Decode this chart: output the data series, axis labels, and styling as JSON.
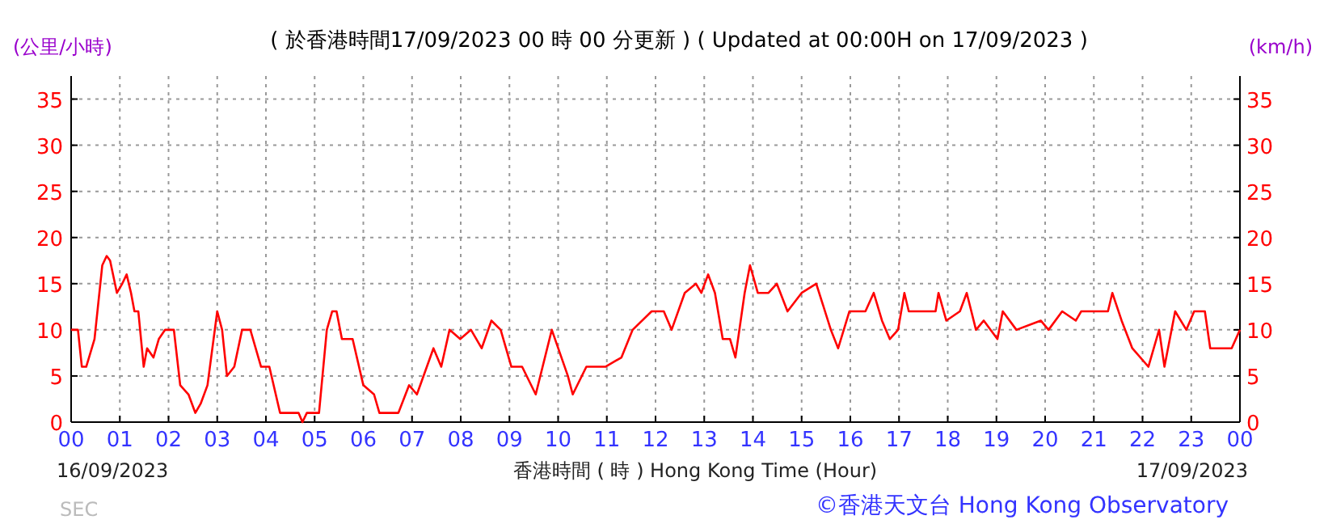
{
  "chart_data": {
    "type": "line",
    "title": "( 於香港時間17/09/2023 00 時 00 分更新 ) ( Updated at 00:00H on 17/09/2023 )",
    "xlabel": "香港時間 ( 時 ) Hong Kong Time (Hour)",
    "ylabel": "(公里/小時)",
    "y2label": "(km/h)",
    "annotations": [
      "16/09/2023",
      "17/09/2023",
      "©香港天文台 Hong Kong Observatory",
      "SEC"
    ],
    "x": [
      0,
      0.14,
      0.22,
      0.31,
      0.48,
      0.56,
      0.64,
      0.73,
      0.8,
      0.94,
      1.05,
      1.14,
      1.23,
      1.3,
      1.38,
      1.49,
      1.56,
      1.69,
      1.8,
      1.93,
      2.11,
      2.24,
      2.41,
      2.55,
      2.66,
      2.8,
      3.0,
      3.1,
      3.2,
      3.35,
      3.51,
      3.68,
      3.9,
      4.07,
      4.29,
      4.67,
      4.75,
      4.84,
      5.09,
      5.25,
      5.36,
      5.45,
      5.56,
      5.78,
      6.0,
      6.22,
      6.33,
      6.72,
      6.94,
      7.1,
      7.44,
      7.6,
      7.77,
      7.99,
      8.21,
      8.43,
      8.63,
      8.82,
      9.04,
      9.26,
      9.54,
      9.87,
      10.2,
      10.3,
      10.58,
      10.97,
      11.3,
      11.53,
      11.92,
      12.17,
      12.33,
      12.6,
      12.83,
      12.94,
      13.08,
      13.22,
      13.38,
      13.53,
      13.64,
      13.83,
      13.94,
      14.1,
      14.32,
      14.49,
      14.71,
      15.0,
      15.3,
      15.6,
      15.75,
      15.98,
      16.31,
      16.48,
      16.65,
      16.81,
      16.98,
      17.11,
      17.2,
      17.75,
      17.81,
      17.97,
      18.25,
      18.39,
      18.58,
      18.74,
      19.02,
      19.13,
      19.41,
      19.91,
      20.07,
      20.35,
      20.63,
      20.74,
      21.29,
      21.38,
      21.57,
      21.79,
      22.12,
      22.34,
      22.45,
      22.67,
      22.9,
      23.06,
      23.28,
      23.39,
      23.83,
      24
    ],
    "series": [
      {
        "color": "#ff0000",
        "values": [
          10,
          10,
          6,
          6,
          9,
          13,
          17,
          18,
          17.5,
          14,
          15,
          16,
          14,
          12,
          12,
          6,
          8,
          7,
          9,
          10,
          10,
          4,
          3,
          1,
          2,
          4,
          12,
          10,
          5,
          6,
          10,
          10,
          6,
          6,
          1,
          1,
          0,
          1,
          1,
          10,
          12,
          12,
          9,
          9,
          4,
          3,
          1,
          1,
          4,
          3,
          8,
          6,
          10,
          9,
          10,
          8,
          11,
          10,
          6,
          6,
          3,
          10,
          5,
          3,
          6,
          6,
          7,
          10,
          12,
          12,
          10,
          14,
          15,
          14,
          16,
          14,
          9,
          9,
          7,
          14,
          17,
          14,
          14,
          15,
          12,
          14,
          15,
          10,
          8,
          12,
          12,
          14,
          11,
          9,
          10,
          14,
          12,
          12,
          14,
          11,
          12,
          14,
          10,
          11,
          9,
          12,
          10,
          11,
          10,
          12,
          11,
          12,
          12,
          14,
          11,
          8,
          6,
          10,
          6,
          12,
          10,
          12,
          12,
          8,
          8,
          10
        ]
      }
    ],
    "xlim": [
      0,
      24
    ],
    "xticks": [
      {
        "value": 0,
        "label": "00"
      },
      {
        "value": 1,
        "label": "01"
      },
      {
        "value": 2,
        "label": "02"
      },
      {
        "value": 3,
        "label": "03"
      },
      {
        "value": 4,
        "label": "04"
      },
      {
        "value": 5,
        "label": "05"
      },
      {
        "value": 6,
        "label": "06"
      },
      {
        "value": 7,
        "label": "07"
      },
      {
        "value": 8,
        "label": "08"
      },
      {
        "value": 9,
        "label": "09"
      },
      {
        "value": 10,
        "label": "10"
      },
      {
        "value": 11,
        "label": "11"
      },
      {
        "value": 12,
        "label": "12"
      },
      {
        "value": 13,
        "label": "13"
      },
      {
        "value": 14,
        "label": "14"
      },
      {
        "value": 15,
        "label": "15"
      },
      {
        "value": 16,
        "label": "16"
      },
      {
        "value": 17,
        "label": "17"
      },
      {
        "value": 18,
        "label": "18"
      },
      {
        "value": 19,
        "label": "19"
      },
      {
        "value": 20,
        "label": "20"
      },
      {
        "value": 21,
        "label": "21"
      },
      {
        "value": 22,
        "label": "22"
      },
      {
        "value": 23,
        "label": "23"
      },
      {
        "value": 24,
        "label": "00"
      }
    ],
    "ylim": [
      0,
      37.5
    ],
    "yticks": [
      0,
      5,
      10,
      15,
      20,
      25,
      30,
      35
    ],
    "y2lim": [
      0,
      37.5
    ],
    "y2ticks": [
      0,
      5,
      10,
      15,
      20,
      25,
      30,
      35
    ],
    "grid": true,
    "line_style": "solid",
    "marker": "none"
  }
}
